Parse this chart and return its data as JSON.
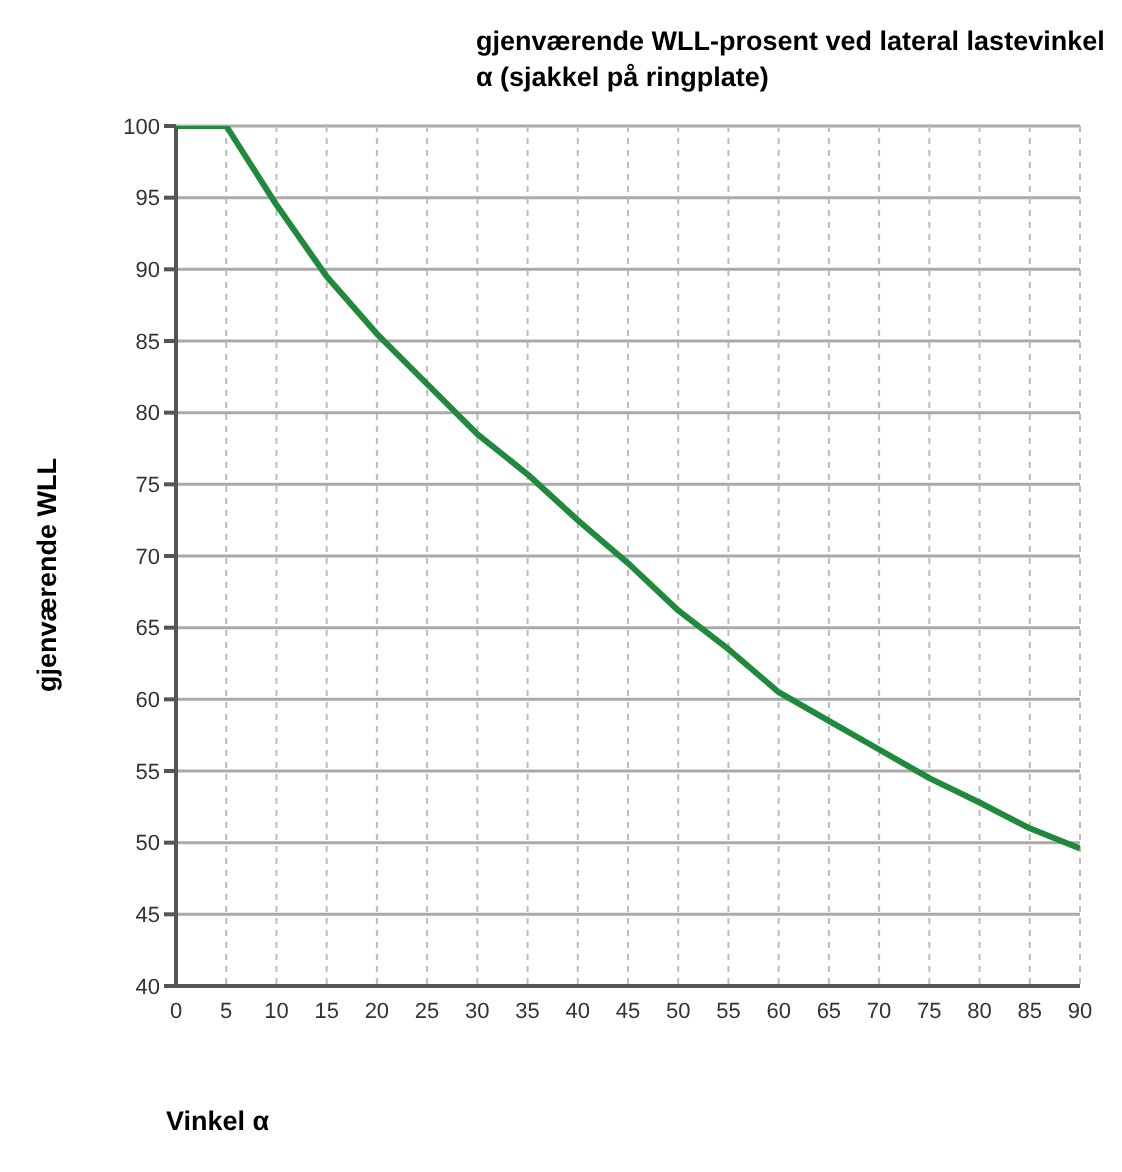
{
  "chart_data": {
    "type": "line",
    "title": "gjenværende WLL-prosent ved lateral lastevinkel α (sjakkel på ringplate)",
    "xlabel": "Vinkel α",
    "ylabel": "gjenværende WLL",
    "x": [
      0,
      5,
      10,
      15,
      20,
      25,
      30,
      35,
      40,
      45,
      50,
      55,
      60,
      65,
      70,
      75,
      80,
      85,
      90
    ],
    "series": [
      {
        "color": "#1f8a3c",
        "values": [
          100,
          100,
          94.5,
          89.5,
          85.5,
          82,
          78.5,
          75.7,
          72.5,
          69.5,
          66.2,
          63.5,
          60.5,
          58.5,
          56.5,
          54.5,
          52.8,
          51,
          49.6
        ]
      }
    ],
    "xlim": [
      0,
      90
    ],
    "xticks": [
      0,
      5,
      10,
      15,
      20,
      25,
      30,
      35,
      40,
      45,
      50,
      55,
      60,
      65,
      70,
      75,
      80,
      85,
      90
    ],
    "ylim": [
      40,
      100
    ],
    "yticks": [
      40,
      45,
      50,
      55,
      60,
      65,
      70,
      75,
      80,
      85,
      90,
      95,
      100
    ],
    "grid": true,
    "marker": "none",
    "line_style": "solid"
  }
}
